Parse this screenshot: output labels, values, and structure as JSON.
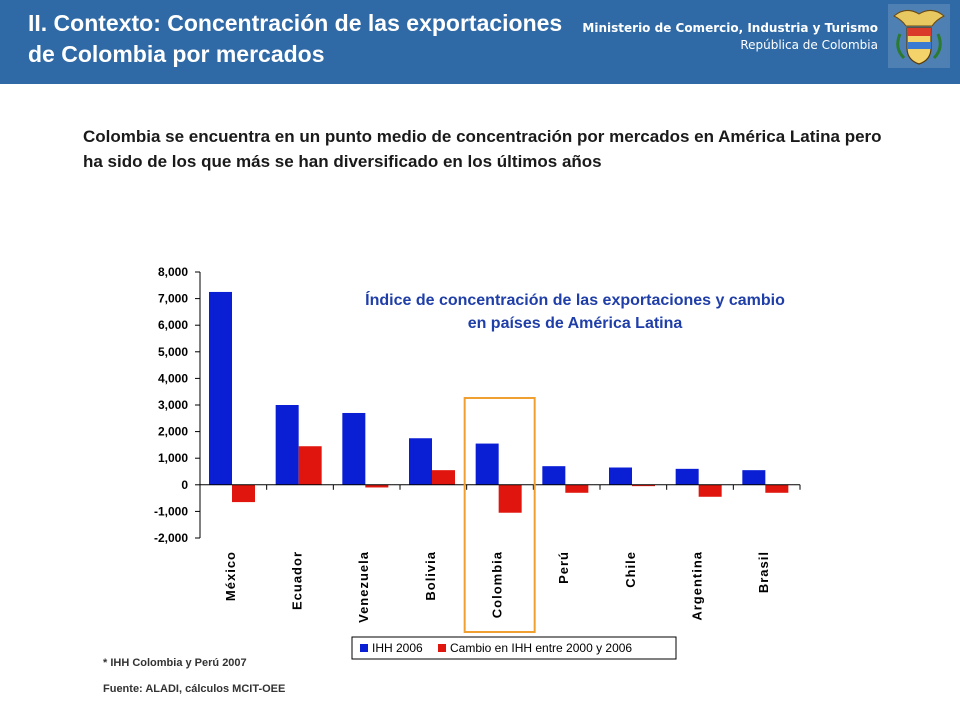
{
  "header": {
    "title": "II. Contexto: Concentración de las exportaciones de Colombia por mercados",
    "ministry": "Ministerio de Comercio, Industria y Turismo",
    "republic": "República de Colombia",
    "header_color": "#2f6aa6",
    "crest_icon": "coat-of-arms-icon"
  },
  "lead_text": "Colombia se encuentra en un punto medio de concentración por mercados en América Latina pero ha sido de los que más se han diversificado en los últimos años",
  "chart_data": {
    "type": "bar",
    "title": "Índice de concentración de las exportaciones y cambio en países de América Latina",
    "categories": [
      "México",
      "Ecuador",
      "Venezuela",
      "Bolivia",
      "Colombia",
      "Perú",
      "Chile",
      "Argentina",
      "Brasil"
    ],
    "series": [
      {
        "name": "IHH 2006",
        "color": "#0a1ed4",
        "values": [
          7250,
          3000,
          2700,
          1750,
          1550,
          700,
          650,
          600,
          550
        ]
      },
      {
        "name": "Cambio en IHH entre 2000 y 2006",
        "color": "#e0160e",
        "values": [
          -650,
          1450,
          -100,
          550,
          -1050,
          -300,
          -50,
          -450,
          -300
        ]
      }
    ],
    "ylim": [
      -2000,
      8000
    ],
    "yticks": [
      "-2,000",
      "-1,000",
      "0",
      "1,000",
      "2,000",
      "3,000",
      "4,000",
      "5,000",
      "6,000",
      "7,000",
      "8,000"
    ],
    "highlight_category": "Colombia",
    "highlight_color": "#f0a030",
    "grid": false,
    "legend_position": "bottom"
  },
  "footnote": "* IHH  Colombia y Perú 2007",
  "source": "Fuente: ALADI, cálculos MCIT-OEE"
}
